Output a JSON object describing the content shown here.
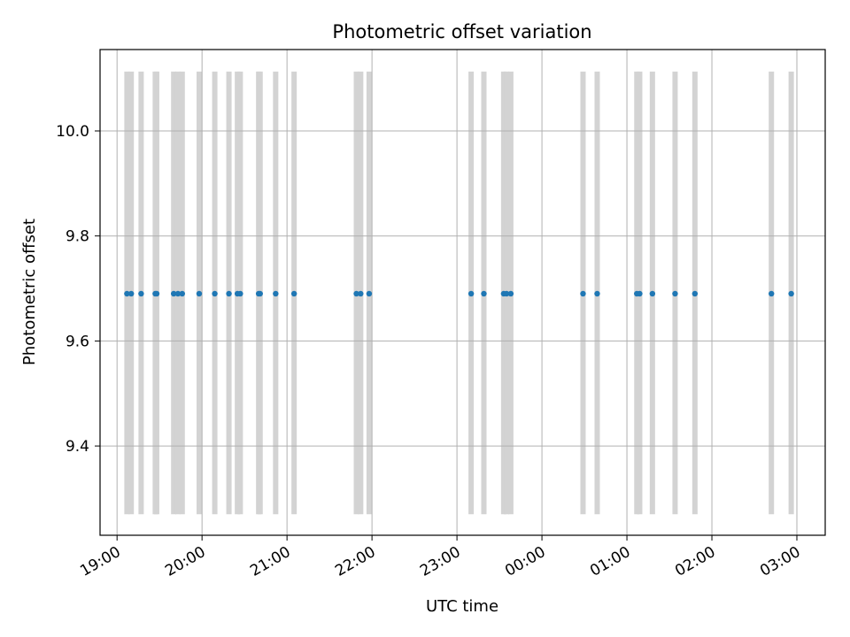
{
  "chart_data": {
    "type": "scatter",
    "title": "Photometric offset variation",
    "xlabel": "UTC time",
    "ylabel": "Photometric offset",
    "grid": true,
    "xlim": [
      "18:48",
      "03:20"
    ],
    "ylim": [
      9.23,
      10.155
    ],
    "x_ticks": [
      "19:00",
      "20:00",
      "21:00",
      "22:00",
      "23:00",
      "00:00",
      "01:00",
      "02:00",
      "03:00"
    ],
    "y_ticks": [
      "9.4",
      "9.6",
      "9.8",
      "10.0"
    ],
    "band_range": [
      9.27,
      10.113
    ],
    "band_color": "#d3d3d3",
    "point_color": "#1f77b4",
    "exposure_times": [
      "19:07",
      "19:10",
      "19:17",
      "19:27",
      "19:28",
      "19:40",
      "19:43",
      "19:46",
      "19:58",
      "20:09",
      "20:19",
      "20:25",
      "20:27",
      "20:40",
      "20:41",
      "20:52",
      "21:05",
      "21:49",
      "21:52",
      "21:58",
      "23:10",
      "23:19",
      "23:33",
      "23:35",
      "23:38",
      "00:29",
      "00:39",
      "01:07",
      "01:09",
      "01:18",
      "01:34",
      "01:48",
      "02:42",
      "02:56"
    ],
    "offsets": [
      9.69,
      9.69,
      9.69,
      9.69,
      9.69,
      9.69,
      9.69,
      9.69,
      9.69,
      9.69,
      9.69,
      9.69,
      9.69,
      9.69,
      9.69,
      9.69,
      9.69,
      9.69,
      9.69,
      9.69,
      9.69,
      9.69,
      9.69,
      9.69,
      9.69,
      9.69,
      9.69,
      9.69,
      9.69,
      9.69,
      9.69,
      9.69,
      9.69,
      9.69
    ]
  }
}
